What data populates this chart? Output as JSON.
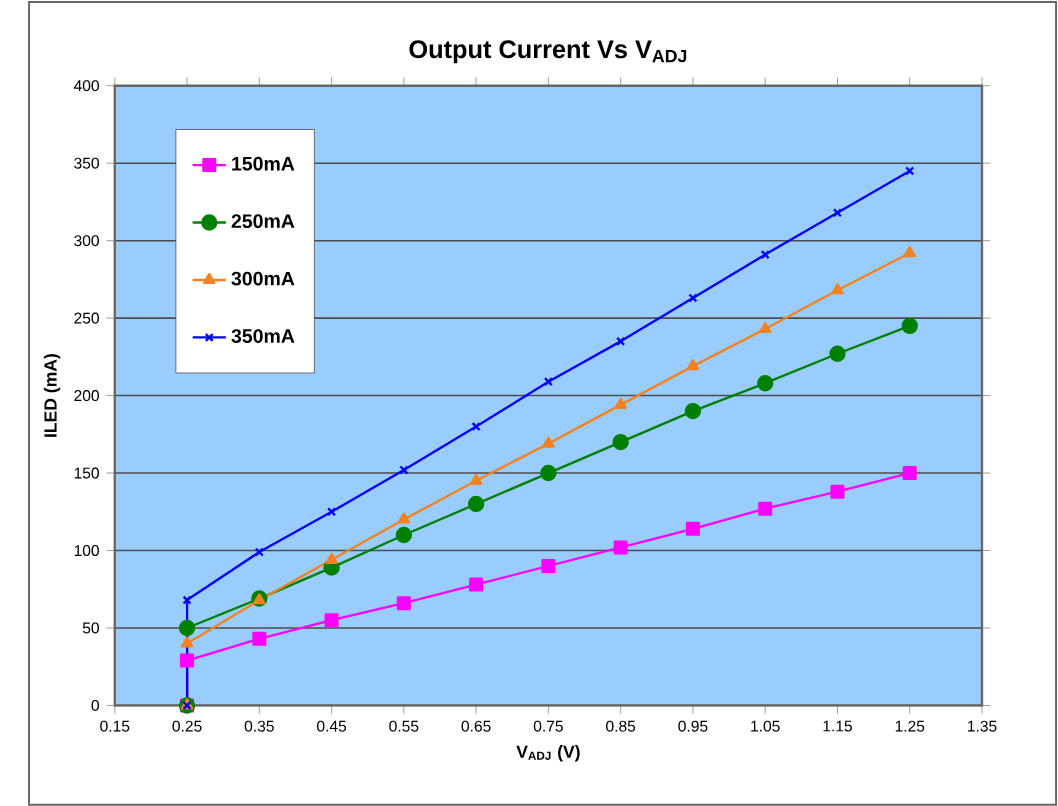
{
  "chart_data": {
    "type": "line",
    "title": "Output Current Vs V$_{ADJ}$",
    "xlabel": "V$_{ADJ}$ (V)",
    "ylabel": "ILED (mA)",
    "xlim": [
      0.15,
      1.35
    ],
    "xticks": [
      {
        "value": 0.15,
        "label": "0.15"
      },
      {
        "value": 0.25,
        "label": "0.25"
      },
      {
        "value": 0.35,
        "label": "0.35"
      },
      {
        "value": 0.45,
        "label": "0.45"
      },
      {
        "value": 0.55,
        "label": "0.55"
      },
      {
        "value": 0.65,
        "label": "0.65"
      },
      {
        "value": 0.75,
        "label": "0.75"
      },
      {
        "value": 0.85,
        "label": "0.85"
      },
      {
        "value": 0.95,
        "label": "0.95"
      },
      {
        "value": 1.05,
        "label": "1.05"
      },
      {
        "value": 1.15,
        "label": "1.15"
      },
      {
        "value": 1.25,
        "label": "1.25"
      },
      {
        "value": 1.35,
        "label": "1.35"
      }
    ],
    "ylim": [
      0,
      400
    ],
    "yticks": [
      0,
      50,
      100,
      150,
      200,
      250,
      300,
      350,
      400
    ],
    "grid": "y",
    "legend": "top left",
    "series": [
      {
        "name": "150mA",
        "color": "#ff00ff",
        "marker": "square",
        "x": [
          0.25,
          0.25,
          0.35,
          0.45,
          0.55,
          0.65,
          0.75,
          0.85,
          0.95,
          1.05,
          1.15,
          1.25
        ],
        "values": [
          0,
          29,
          43,
          55,
          66,
          78,
          90,
          102,
          114,
          127,
          138,
          150
        ]
      },
      {
        "name": "250mA",
        "color": "#008000",
        "marker": "circle",
        "x": [
          0.25,
          0.25,
          0.35,
          0.45,
          0.55,
          0.65,
          0.75,
          0.85,
          0.95,
          1.05,
          1.15,
          1.25
        ],
        "values": [
          0,
          50,
          69,
          89,
          110,
          130,
          150,
          170,
          190,
          208,
          227,
          245
        ]
      },
      {
        "name": "300mA",
        "color": "#f58220",
        "marker": "triangle",
        "x": [
          0.25,
          0.25,
          0.35,
          0.45,
          0.55,
          0.65,
          0.75,
          0.85,
          0.95,
          1.05,
          1.15,
          1.25
        ],
        "values": [
          0,
          40,
          68,
          94,
          120,
          145,
          169,
          194,
          219,
          243,
          268,
          292
        ]
      },
      {
        "name": "350mA",
        "color": "#0000ff",
        "marker": "cross",
        "x": [
          0.25,
          0.25,
          0.35,
          0.45,
          0.55,
          0.65,
          0.75,
          0.85,
          0.95,
          1.05,
          1.15,
          1.25
        ],
        "values": [
          0,
          68,
          99,
          125,
          152,
          180,
          209,
          235,
          263,
          291,
          318,
          345
        ]
      }
    ]
  }
}
